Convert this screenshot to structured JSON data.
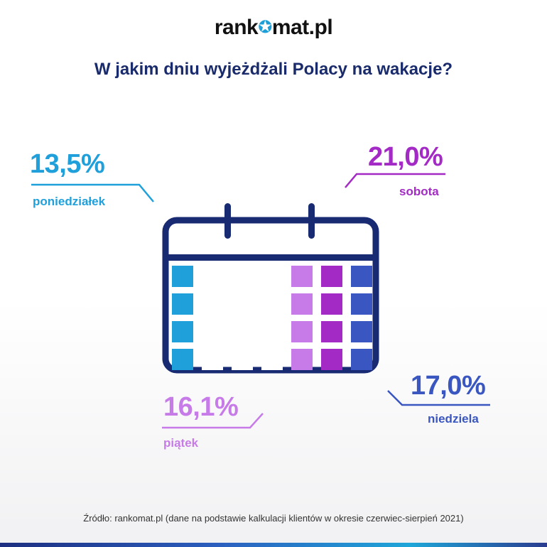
{
  "brand": {
    "prefix": "rank",
    "suffix": "mat.pl",
    "star_color": "#1f9fd8"
  },
  "title": "W jakim dniu wyjeżdżali Polacy na wakacje?",
  "source": "Źródło: rankomat.pl (dane na podstawie kalkulacji klientów w okresie czerwiec-sierpień 2021)",
  "colors": {
    "monday": "#1fa0db",
    "friday": "#c77be8",
    "saturday": "#a42ac6",
    "sunday": "#3a56c0",
    "calendar_frame": "#172a72",
    "title": "#1a2b6b"
  },
  "chart_data": {
    "type": "infographic",
    "title": "W jakim dniu wyjeżdżali Polacy na wakacje?",
    "unit": "%",
    "categories": [
      "poniedziałek",
      "piątek",
      "sobota",
      "niedziela"
    ],
    "values": [
      13.5,
      16.1,
      21.0,
      17.0
    ],
    "labels": [
      "13,5%",
      "16,1%",
      "21,0%",
      "17,0%"
    ]
  }
}
